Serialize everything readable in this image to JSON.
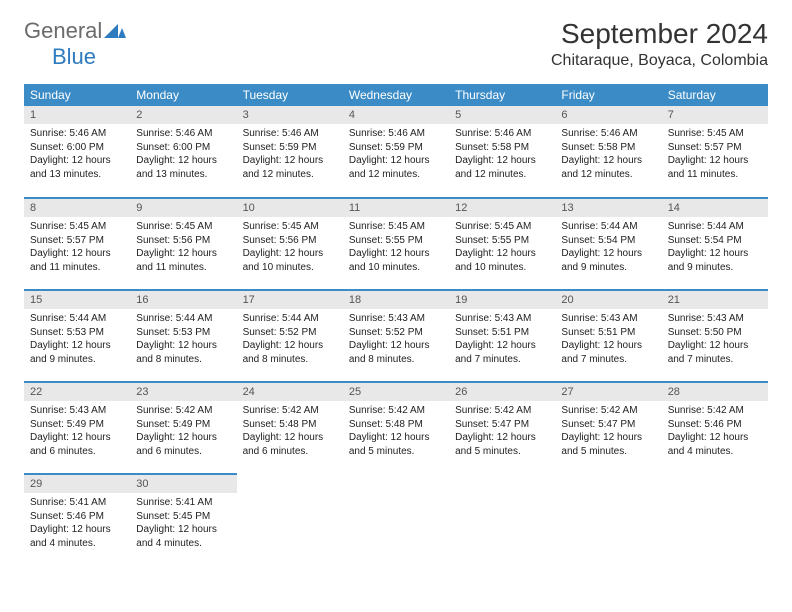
{
  "logo": {
    "general": "General",
    "blue": "Blue",
    "mark_color": "#2f7bbf",
    "general_color": "#6b6b6b"
  },
  "title": "September 2024",
  "location": "Chitaraque, Boyaca, Colombia",
  "header_bg": "#3b8bc6",
  "header_fg": "#ffffff",
  "daynum_bg": "#e8e8e8",
  "divider_color": "#3b8bc6",
  "weekdays": [
    "Sunday",
    "Monday",
    "Tuesday",
    "Wednesday",
    "Thursday",
    "Friday",
    "Saturday"
  ],
  "weeks": [
    [
      {
        "n": "1",
        "sunrise": "Sunrise: 5:46 AM",
        "sunset": "Sunset: 6:00 PM",
        "daylight": "Daylight: 12 hours and 13 minutes."
      },
      {
        "n": "2",
        "sunrise": "Sunrise: 5:46 AM",
        "sunset": "Sunset: 6:00 PM",
        "daylight": "Daylight: 12 hours and 13 minutes."
      },
      {
        "n": "3",
        "sunrise": "Sunrise: 5:46 AM",
        "sunset": "Sunset: 5:59 PM",
        "daylight": "Daylight: 12 hours and 12 minutes."
      },
      {
        "n": "4",
        "sunrise": "Sunrise: 5:46 AM",
        "sunset": "Sunset: 5:59 PM",
        "daylight": "Daylight: 12 hours and 12 minutes."
      },
      {
        "n": "5",
        "sunrise": "Sunrise: 5:46 AM",
        "sunset": "Sunset: 5:58 PM",
        "daylight": "Daylight: 12 hours and 12 minutes."
      },
      {
        "n": "6",
        "sunrise": "Sunrise: 5:46 AM",
        "sunset": "Sunset: 5:58 PM",
        "daylight": "Daylight: 12 hours and 12 minutes."
      },
      {
        "n": "7",
        "sunrise": "Sunrise: 5:45 AM",
        "sunset": "Sunset: 5:57 PM",
        "daylight": "Daylight: 12 hours and 11 minutes."
      }
    ],
    [
      {
        "n": "8",
        "sunrise": "Sunrise: 5:45 AM",
        "sunset": "Sunset: 5:57 PM",
        "daylight": "Daylight: 12 hours and 11 minutes."
      },
      {
        "n": "9",
        "sunrise": "Sunrise: 5:45 AM",
        "sunset": "Sunset: 5:56 PM",
        "daylight": "Daylight: 12 hours and 11 minutes."
      },
      {
        "n": "10",
        "sunrise": "Sunrise: 5:45 AM",
        "sunset": "Sunset: 5:56 PM",
        "daylight": "Daylight: 12 hours and 10 minutes."
      },
      {
        "n": "11",
        "sunrise": "Sunrise: 5:45 AM",
        "sunset": "Sunset: 5:55 PM",
        "daylight": "Daylight: 12 hours and 10 minutes."
      },
      {
        "n": "12",
        "sunrise": "Sunrise: 5:45 AM",
        "sunset": "Sunset: 5:55 PM",
        "daylight": "Daylight: 12 hours and 10 minutes."
      },
      {
        "n": "13",
        "sunrise": "Sunrise: 5:44 AM",
        "sunset": "Sunset: 5:54 PM",
        "daylight": "Daylight: 12 hours and 9 minutes."
      },
      {
        "n": "14",
        "sunrise": "Sunrise: 5:44 AM",
        "sunset": "Sunset: 5:54 PM",
        "daylight": "Daylight: 12 hours and 9 minutes."
      }
    ],
    [
      {
        "n": "15",
        "sunrise": "Sunrise: 5:44 AM",
        "sunset": "Sunset: 5:53 PM",
        "daylight": "Daylight: 12 hours and 9 minutes."
      },
      {
        "n": "16",
        "sunrise": "Sunrise: 5:44 AM",
        "sunset": "Sunset: 5:53 PM",
        "daylight": "Daylight: 12 hours and 8 minutes."
      },
      {
        "n": "17",
        "sunrise": "Sunrise: 5:44 AM",
        "sunset": "Sunset: 5:52 PM",
        "daylight": "Daylight: 12 hours and 8 minutes."
      },
      {
        "n": "18",
        "sunrise": "Sunrise: 5:43 AM",
        "sunset": "Sunset: 5:52 PM",
        "daylight": "Daylight: 12 hours and 8 minutes."
      },
      {
        "n": "19",
        "sunrise": "Sunrise: 5:43 AM",
        "sunset": "Sunset: 5:51 PM",
        "daylight": "Daylight: 12 hours and 7 minutes."
      },
      {
        "n": "20",
        "sunrise": "Sunrise: 5:43 AM",
        "sunset": "Sunset: 5:51 PM",
        "daylight": "Daylight: 12 hours and 7 minutes."
      },
      {
        "n": "21",
        "sunrise": "Sunrise: 5:43 AM",
        "sunset": "Sunset: 5:50 PM",
        "daylight": "Daylight: 12 hours and 7 minutes."
      }
    ],
    [
      {
        "n": "22",
        "sunrise": "Sunrise: 5:43 AM",
        "sunset": "Sunset: 5:49 PM",
        "daylight": "Daylight: 12 hours and 6 minutes."
      },
      {
        "n": "23",
        "sunrise": "Sunrise: 5:42 AM",
        "sunset": "Sunset: 5:49 PM",
        "daylight": "Daylight: 12 hours and 6 minutes."
      },
      {
        "n": "24",
        "sunrise": "Sunrise: 5:42 AM",
        "sunset": "Sunset: 5:48 PM",
        "daylight": "Daylight: 12 hours and 6 minutes."
      },
      {
        "n": "25",
        "sunrise": "Sunrise: 5:42 AM",
        "sunset": "Sunset: 5:48 PM",
        "daylight": "Daylight: 12 hours and 5 minutes."
      },
      {
        "n": "26",
        "sunrise": "Sunrise: 5:42 AM",
        "sunset": "Sunset: 5:47 PM",
        "daylight": "Daylight: 12 hours and 5 minutes."
      },
      {
        "n": "27",
        "sunrise": "Sunrise: 5:42 AM",
        "sunset": "Sunset: 5:47 PM",
        "daylight": "Daylight: 12 hours and 5 minutes."
      },
      {
        "n": "28",
        "sunrise": "Sunrise: 5:42 AM",
        "sunset": "Sunset: 5:46 PM",
        "daylight": "Daylight: 12 hours and 4 minutes."
      }
    ],
    [
      {
        "n": "29",
        "sunrise": "Sunrise: 5:41 AM",
        "sunset": "Sunset: 5:46 PM",
        "daylight": "Daylight: 12 hours and 4 minutes."
      },
      {
        "n": "30",
        "sunrise": "Sunrise: 5:41 AM",
        "sunset": "Sunset: 5:45 PM",
        "daylight": "Daylight: 12 hours and 4 minutes."
      },
      null,
      null,
      null,
      null,
      null
    ]
  ]
}
